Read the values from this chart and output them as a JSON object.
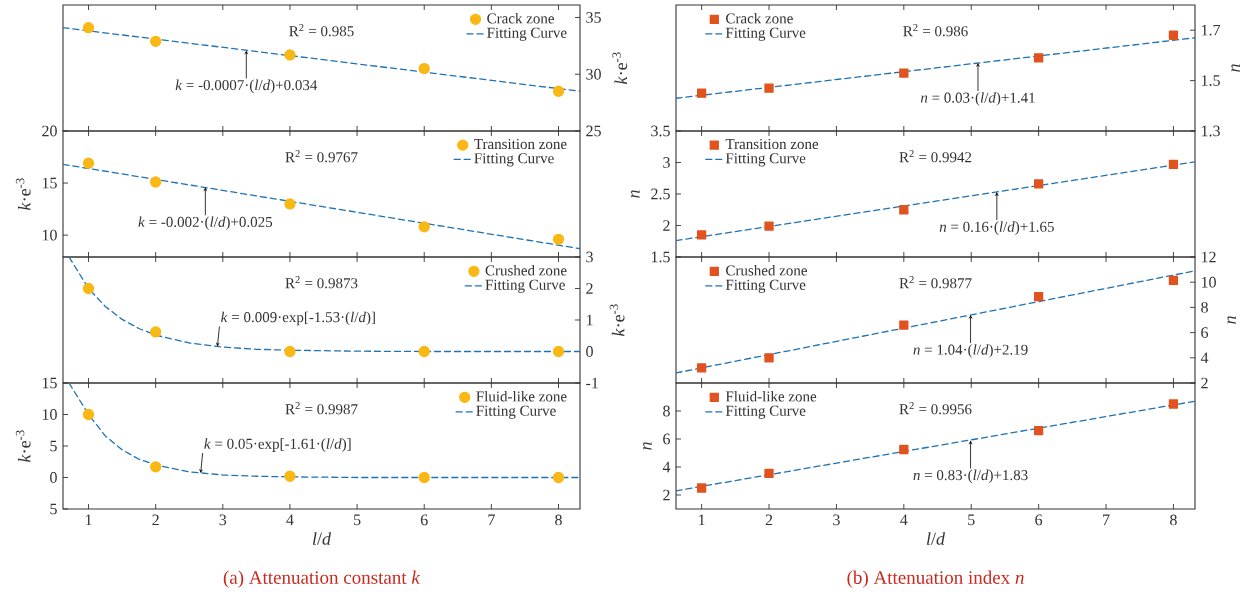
{
  "chart_data": [
    {
      "type": "scatter",
      "xlim": [
        0.62,
        8.32
      ],
      "xticks": [
        1,
        2,
        3,
        4,
        5,
        6,
        7,
        8
      ],
      "ylim": [
        25,
        36.1
      ],
      "yticks": [
        25,
        30,
        35
      ],
      "ylabel": "*k*·e$^{-3}$",
      "tick_labels": "y",
      "legend": "top right",
      "series": [
        {
          "name": "Crack zone",
          "marker": "circle",
          "color": "#f9b814",
          "x": [
            1,
            2,
            4,
            6,
            8
          ],
          "values": [
            34.1,
            32.9,
            31.7,
            30.5,
            28.5
          ]
        },
        {
          "name": "Fitting Curve",
          "type": "line",
          "marker": "none",
          "line_style": "dashed",
          "color": "#1f72b4",
          "x": [
            0.62,
            8.32
          ],
          "values": [
            34.1,
            28.5
          ]
        }
      ],
      "annotations": [
        "R$^{2}$ = 0.985",
        {
          "text": "*k* = -0.0007·(*l*/*d*)+0.034",
          "x": 3.35,
          "y": 32.1
        }
      ]
    },
    {
      "type": "scatter",
      "xlim": [
        0.62,
        8.32
      ],
      "xticks": [
        1,
        2,
        3,
        4,
        5,
        6,
        7,
        8
      ],
      "ylim": [
        7.9,
        20
      ],
      "yticks": [
        10,
        15,
        20
      ],
      "ylabel": "*k*·e$^{-3}$",
      "tick_labels": "y",
      "legend": "top right",
      "series": [
        {
          "name": "Transition zone",
          "marker": "circle",
          "color": "#f9b814",
          "x": [
            1,
            2,
            4,
            6,
            8
          ],
          "values": [
            16.9,
            15.1,
            13.0,
            10.8,
            9.6
          ]
        },
        {
          "name": "Fitting Curve",
          "type": "line",
          "marker": "none",
          "line_style": "dashed",
          "color": "#1f72b4",
          "x": [
            0.62,
            8.32
          ],
          "values": [
            16.8,
            8.7
          ]
        }
      ],
      "annotations": [
        "R$^{2}$ = 0.9767",
        {
          "text": "*k* = -0.002·(*l*/*d*)+0.025",
          "x": 2.74,
          "y": 14.6
        }
      ]
    },
    {
      "type": "scatter",
      "xlim": [
        0.62,
        8.32
      ],
      "xticks": [
        1,
        2,
        3,
        4,
        5,
        6,
        7,
        8
      ],
      "ylim": [
        -1,
        3
      ],
      "yticks": [
        -1,
        0,
        1,
        2,
        3
      ],
      "ylabel": "*k*·e$^{-3}$",
      "tick_labels": "y",
      "legend": "top right",
      "series": [
        {
          "name": "Crushed zone",
          "marker": "circle",
          "color": "#f9b814",
          "x": [
            1,
            2,
            4,
            6,
            8
          ],
          "values": [
            2.0,
            0.62,
            0,
            0,
            0
          ]
        },
        {
          "name": "Fitting Curve",
          "type": "line",
          "marker": "none",
          "line_style": "dashed",
          "color": "#1f72b4",
          "x": [
            0.71,
            1,
            1.25,
            1.5,
            1.75,
            2,
            2.5,
            3,
            3.5,
            4,
            5,
            6,
            8.32
          ],
          "values": [
            3.0,
            2.0,
            1.43,
            1.02,
            0.73,
            0.52,
            0.27,
            0.14,
            0.07,
            0.04,
            0.01,
            0,
            0
          ]
        }
      ],
      "annotations": [
        "R$^{2}$ = 0.9873",
        {
          "text": "*k* = 0.009·exp[-1.53·(*l*/*d*)]",
          "x": 2.92,
          "y": 0.16
        }
      ]
    },
    {
      "type": "scatter",
      "title": "(a) Attenuation constant *k*",
      "xlabel": "*l*/*d*",
      "xlim": [
        0.62,
        8.32
      ],
      "xticks": [
        1,
        2,
        3,
        4,
        5,
        6,
        7,
        8
      ],
      "ylim": [
        -5,
        15
      ],
      "yticks": [
        {
          "value": -5,
          "label": "5"
        },
        0,
        5,
        10,
        15
      ],
      "ylabel": "*k*·e$^{-3}$",
      "legend": "top right",
      "series": [
        {
          "name": "Fluid-like zone",
          "marker": "circle",
          "color": "#f9b814",
          "x": [
            1,
            2,
            4,
            6,
            8
          ],
          "values": [
            10,
            1.7,
            0.2,
            0,
            0
          ]
        },
        {
          "name": "Fitting Curve",
          "type": "line",
          "marker": "none",
          "line_style": "dashed",
          "color": "#1f72b4",
          "x": [
            0.71,
            1,
            1.25,
            1.5,
            1.75,
            2,
            2.5,
            3,
            3.5,
            4,
            5,
            6,
            8.32
          ],
          "values": [
            15,
            10,
            6.6,
            4.4,
            2.9,
            2.0,
            0.9,
            0.4,
            0.2,
            0.1,
            0,
            0,
            0
          ]
        }
      ],
      "annotations": [
        "R$^{2}$ = 0.9987",
        {
          "text": "*k* = 0.05·exp[-1.61·(*l*/*d*)]",
          "x": 2.67,
          "y": 0.7
        }
      ]
    },
    {
      "type": "scatter",
      "xlim": [
        0.62,
        8.32
      ],
      "xticks": [
        1,
        2,
        3,
        4,
        5,
        6,
        7,
        8
      ],
      "ylim": [
        1.3,
        1.8
      ],
      "yticks": [
        1.3,
        1.5,
        1.7
      ],
      "ylabel": "*n*",
      "tick_labels": "y",
      "legend": "top left",
      "series": [
        {
          "name": "Crack zone",
          "marker": "square",
          "color": "#e0531f",
          "x": [
            1,
            2,
            4,
            6,
            8
          ],
          "values": [
            1.45,
            1.47,
            1.53,
            1.59,
            1.68
          ]
        },
        {
          "name": "Fitting Curve",
          "type": "line",
          "marker": "none",
          "line_style": "dashed",
          "color": "#1f72b4",
          "x": [
            0.62,
            8.32
          ],
          "values": [
            1.43,
            1.67
          ]
        }
      ],
      "annotations": [
        "R$^{2}$ = 0.986",
        {
          "text": "*n* = 0.03·(*l*/*d*)+1.41",
          "x": 5.1,
          "y": 1.57
        }
      ]
    },
    {
      "type": "scatter",
      "xlim": [
        0.62,
        8.32
      ],
      "xticks": [
        1,
        2,
        3,
        4,
        5,
        6,
        7,
        8
      ],
      "ylim": [
        1.5,
        3.5
      ],
      "yticks": [
        1.5,
        2,
        2.5,
        3,
        3.5
      ],
      "ylabel": "*n*",
      "tick_labels": "y",
      "legend": "top left",
      "series": [
        {
          "name": "Transition zone",
          "marker": "square",
          "color": "#e0531f",
          "x": [
            1,
            2,
            4,
            6,
            8
          ],
          "values": [
            1.85,
            1.99,
            2.25,
            2.66,
            2.97
          ]
        },
        {
          "name": "Fitting Curve",
          "type": "line",
          "marker": "none",
          "line_style": "dashed",
          "color": "#1f72b4",
          "x": [
            0.62,
            8.32
          ],
          "values": [
            1.76,
            3.01
          ]
        }
      ],
      "annotations": [
        "R$^{2}$ = 0.9942",
        {
          "text": "*n* = 0.16·(*l*/*d*)+1.65",
          "x": 5.38,
          "y": 2.53
        }
      ]
    },
    {
      "type": "scatter",
      "xlim": [
        0.62,
        8.32
      ],
      "xticks": [
        1,
        2,
        3,
        4,
        5,
        6,
        7,
        8
      ],
      "ylim": [
        2,
        12
      ],
      "yticks": [
        2,
        4,
        6,
        8,
        10,
        12
      ],
      "ylabel": "*n*",
      "tick_labels": "y",
      "legend": "top left",
      "series": [
        {
          "name": "Crushed zone",
          "marker": "square",
          "color": "#e0531f",
          "x": [
            1,
            2,
            4,
            6,
            8
          ],
          "values": [
            3.2,
            4.0,
            6.6,
            8.85,
            10.15
          ]
        },
        {
          "name": "Fitting Curve",
          "type": "line",
          "marker": "none",
          "line_style": "dashed",
          "color": "#1f72b4",
          "x": [
            0.62,
            8.32
          ],
          "values": [
            2.8,
            10.9
          ]
        }
      ],
      "annotations": [
        "R$^{2}$ = 0.9877",
        {
          "text": "*n* = 1.04·(*l*/*d*)+2.19",
          "x": 4.99,
          "y": 7.4
        }
      ]
    },
    {
      "type": "scatter",
      "title": "(b) Attenuation index *n*",
      "xlabel": "*l*/*d*",
      "xlim": [
        0.62,
        8.32
      ],
      "xticks": [
        1,
        2,
        3,
        4,
        5,
        6,
        7,
        8
      ],
      "ylim": [
        1,
        10
      ],
      "yticks": [
        2,
        4,
        6,
        8
      ],
      "ylabel": "*n*",
      "legend": "top left",
      "series": [
        {
          "name": "Fluid-like zone",
          "marker": "square",
          "color": "#e0531f",
          "x": [
            1,
            2,
            4,
            6,
            8
          ],
          "values": [
            2.5,
            3.55,
            5.25,
            6.6,
            8.5
          ]
        },
        {
          "name": "Fitting Curve",
          "type": "line",
          "marker": "none",
          "line_style": "dashed",
          "color": "#1f72b4",
          "x": [
            0.62,
            8.32
          ],
          "values": [
            2.3,
            8.7
          ]
        }
      ],
      "annotations": [
        "R$^{2}$ = 0.9956",
        {
          "text": "*n* = 0.83·(*l*/*d*)+1.83",
          "x": 4.99,
          "y": 5.9
        }
      ]
    }
  ]
}
